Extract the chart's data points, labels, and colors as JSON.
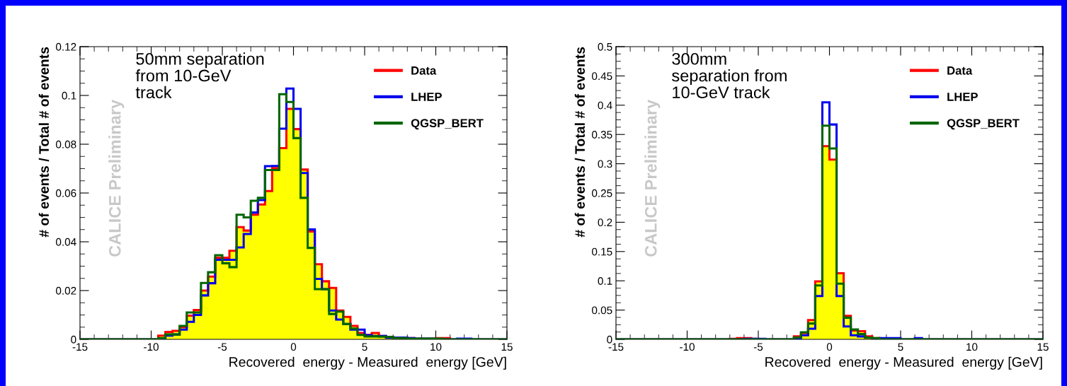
{
  "chart_data": [
    {
      "type": "histogram",
      "xlabel": "Recovered  energy - Measured  energy [GeV]",
      "ylabel": "# of events / Total # of events",
      "annotations": [
        "50mm separation\nfrom 10-GeV\ntrack",
        "CALICE Preliminary"
      ],
      "bins": [
        -15,
        -14.5,
        -14,
        -13.5,
        -13,
        -12.5,
        -12,
        -11.5,
        -11,
        -10.5,
        -10,
        -9.5,
        -9,
        -8.5,
        -8,
        -7.5,
        -7,
        -6.5,
        -6,
        -5.5,
        -5,
        -4.5,
        -4,
        -3.5,
        -3,
        -2.5,
        -2,
        -1.5,
        -1,
        -0.5,
        0,
        0.5,
        1,
        1.5,
        2,
        2.5,
        3,
        3.5,
        4,
        4.5,
        5,
        5.5,
        6,
        6.5,
        7,
        7.5,
        8,
        8.5,
        9,
        9.5,
        10,
        10.5,
        11,
        11.5,
        12,
        12.5,
        13,
        13.5,
        14,
        14.5,
        15
      ],
      "series": [
        {
          "name": "Data",
          "color": "#ff0000",
          "values": [
            0,
            0,
            0,
            0,
            0,
            0,
            0,
            0,
            0,
            0,
            0,
            0.0015,
            0.003,
            0.0035,
            0.005,
            0.0097,
            0.012,
            0.02,
            0.0257,
            0.0335,
            0.0335,
            0.0363,
            0.046,
            0.0446,
            0.0511,
            0.0553,
            0.0608,
            0.0702,
            0.0784,
            0.0945,
            0.0862,
            0.0696,
            0.0442,
            0.0308,
            0.0238,
            0.0211,
            0.0118,
            0.0092,
            0.0055,
            0.0026,
            0.0018,
            0.0026,
            0.0014,
            0.001,
            0.0007,
            0.0005,
            0.0005,
            0.0003,
            0.0003,
            0.0003,
            0.0005,
            0.0005,
            0,
            0,
            0,
            0,
            0,
            0,
            0,
            0
          ]
        },
        {
          "name": "LHEP",
          "color": "#0000ee",
          "values": [
            0,
            0,
            0,
            0,
            0,
            0,
            0,
            0,
            0,
            0,
            0,
            0,
            0.0015,
            0.002,
            0.004,
            0.0072,
            0.01,
            0.018,
            0.023,
            0.0326,
            0.0326,
            0.0326,
            0.0377,
            0.0432,
            0.052,
            0.0571,
            0.071,
            0.0711,
            0.0864,
            0.1028,
            0.0945,
            0.0682,
            0.0451,
            0.0248,
            0.0206,
            0.0118,
            0.0081,
            0.0063,
            0.004,
            0.004,
            0.0017,
            0.0014,
            0.0014,
            0.0007,
            0.0007,
            0.0007,
            0.0005,
            0.0003,
            0.0003,
            0.0003,
            0,
            0,
            0,
            0.0003,
            0.0003,
            0,
            0,
            0,
            0,
            0
          ]
        },
        {
          "name": "QGSP_BERT",
          "color": "#006600",
          "values": [
            0,
            0,
            0,
            0,
            0,
            0,
            0,
            0,
            0,
            0,
            0,
            0.0005,
            0.002,
            0.002,
            0.0055,
            0.011,
            0.011,
            0.0231,
            0.0275,
            0.0345,
            0.0312,
            0.0296,
            0.0511,
            0.05,
            0.0568,
            0.058,
            0.0694,
            0.0694,
            0.1005,
            0.0973,
            0.0825,
            0.058,
            0.0375,
            0.0206,
            0.0206,
            0.0104,
            0.0114,
            0.0063,
            0.0044,
            0.0018,
            0.0012,
            0.0012,
            0.0011,
            0.001,
            0.0005,
            0.0005,
            0.0003,
            0.0003,
            0.0003,
            0.0003,
            0.0003,
            0,
            0,
            0,
            0,
            0,
            0,
            0,
            0,
            0
          ]
        }
      ],
      "xlim": [
        -15,
        15
      ],
      "xticks": [
        -15,
        -10,
        -5,
        0,
        5,
        10,
        15
      ],
      "ylim": [
        0,
        0.12
      ],
      "yticks": [
        0,
        0.02,
        0.04,
        0.06,
        0.08,
        0.1,
        0.12
      ],
      "legend": "top right",
      "grid": false
    },
    {
      "type": "histogram",
      "xlabel": "Recovered  energy - Measured  energy [GeV]",
      "ylabel": "# of events / Total # of events",
      "annotations": [
        "300mm\nseparation from\n10-GeV track",
        "CALICE Preliminary"
      ],
      "bins": [
        -15,
        -14.5,
        -14,
        -13.5,
        -13,
        -12.5,
        -12,
        -11.5,
        -11,
        -10.5,
        -10,
        -9.5,
        -9,
        -8.5,
        -8,
        -7.5,
        -7,
        -6.5,
        -6,
        -5.5,
        -5,
        -4.5,
        -4,
        -3.5,
        -3,
        -2.5,
        -2,
        -1.5,
        -1,
        -0.5,
        0,
        0.5,
        1,
        1.5,
        2,
        2.5,
        3,
        3.5,
        4,
        4.5,
        5,
        5.5,
        6,
        6.5,
        7,
        7.5,
        8,
        8.5,
        9,
        9.5,
        10,
        10.5,
        11,
        11.5,
        12,
        12.5,
        13,
        13.5,
        14,
        14.5,
        15
      ],
      "series": [
        {
          "name": "Data",
          "color": "#ff0000",
          "values": [
            0,
            0,
            0,
            0,
            0,
            0,
            0,
            0,
            0,
            0,
            0,
            0,
            0,
            0,
            0,
            0,
            0.001,
            0.002,
            0.002,
            0.001,
            0,
            0,
            0,
            0,
            0,
            0.005,
            0.011,
            0.033,
            0.099,
            0.33,
            0.307,
            0.113,
            0.04,
            0.015,
            0.014,
            0.005,
            0.002,
            0,
            0,
            0,
            0,
            0,
            0,
            0,
            0,
            0,
            0,
            0,
            0,
            0,
            0,
            0,
            0,
            0,
            0,
            0,
            0,
            0,
            0,
            0
          ]
        },
        {
          "name": "LHEP",
          "color": "#0000ee",
          "values": [
            0,
            0,
            0,
            0,
            0,
            0,
            0,
            0,
            0,
            0,
            0,
            0,
            0,
            0,
            0,
            0,
            0,
            0,
            0.001,
            0.001,
            0.001,
            0,
            0,
            0,
            0,
            0.001,
            0.007,
            0.018,
            0.074,
            0.405,
            0.367,
            0.074,
            0.022,
            0.007,
            0.005,
            0.003,
            0.001,
            0.002,
            0.002,
            0.002,
            0,
            0,
            0.002,
            0,
            0,
            0,
            0,
            0,
            0,
            0,
            0,
            0,
            0,
            0,
            0,
            0,
            0,
            0,
            0,
            0
          ]
        },
        {
          "name": "QGSP_BERT",
          "color": "#006600",
          "values": [
            0,
            0,
            0,
            0,
            0,
            0,
            0,
            0,
            0,
            0,
            0,
            0,
            0,
            0,
            0,
            0,
            0,
            0,
            0,
            0,
            0,
            0,
            0,
            0,
            0,
            0.003,
            0.012,
            0.027,
            0.092,
            0.365,
            0.326,
            0.095,
            0.037,
            0.017,
            0.009,
            0.003,
            0.002,
            0,
            0,
            0,
            0,
            0,
            0,
            0,
            0,
            0,
            0,
            0,
            0,
            0,
            0,
            0,
            0,
            0,
            0,
            0,
            0,
            0,
            0,
            0
          ]
        }
      ],
      "xlim": [
        -15,
        15
      ],
      "xticks": [
        -15,
        -10,
        -5,
        0,
        5,
        10,
        15
      ],
      "ylim": [
        0,
        0.5
      ],
      "yticks": [
        0,
        0.05,
        0.1,
        0.15,
        0.2,
        0.25,
        0.3,
        0.35,
        0.4,
        0.45,
        0.5
      ],
      "legend": "top right",
      "grid": false
    }
  ]
}
